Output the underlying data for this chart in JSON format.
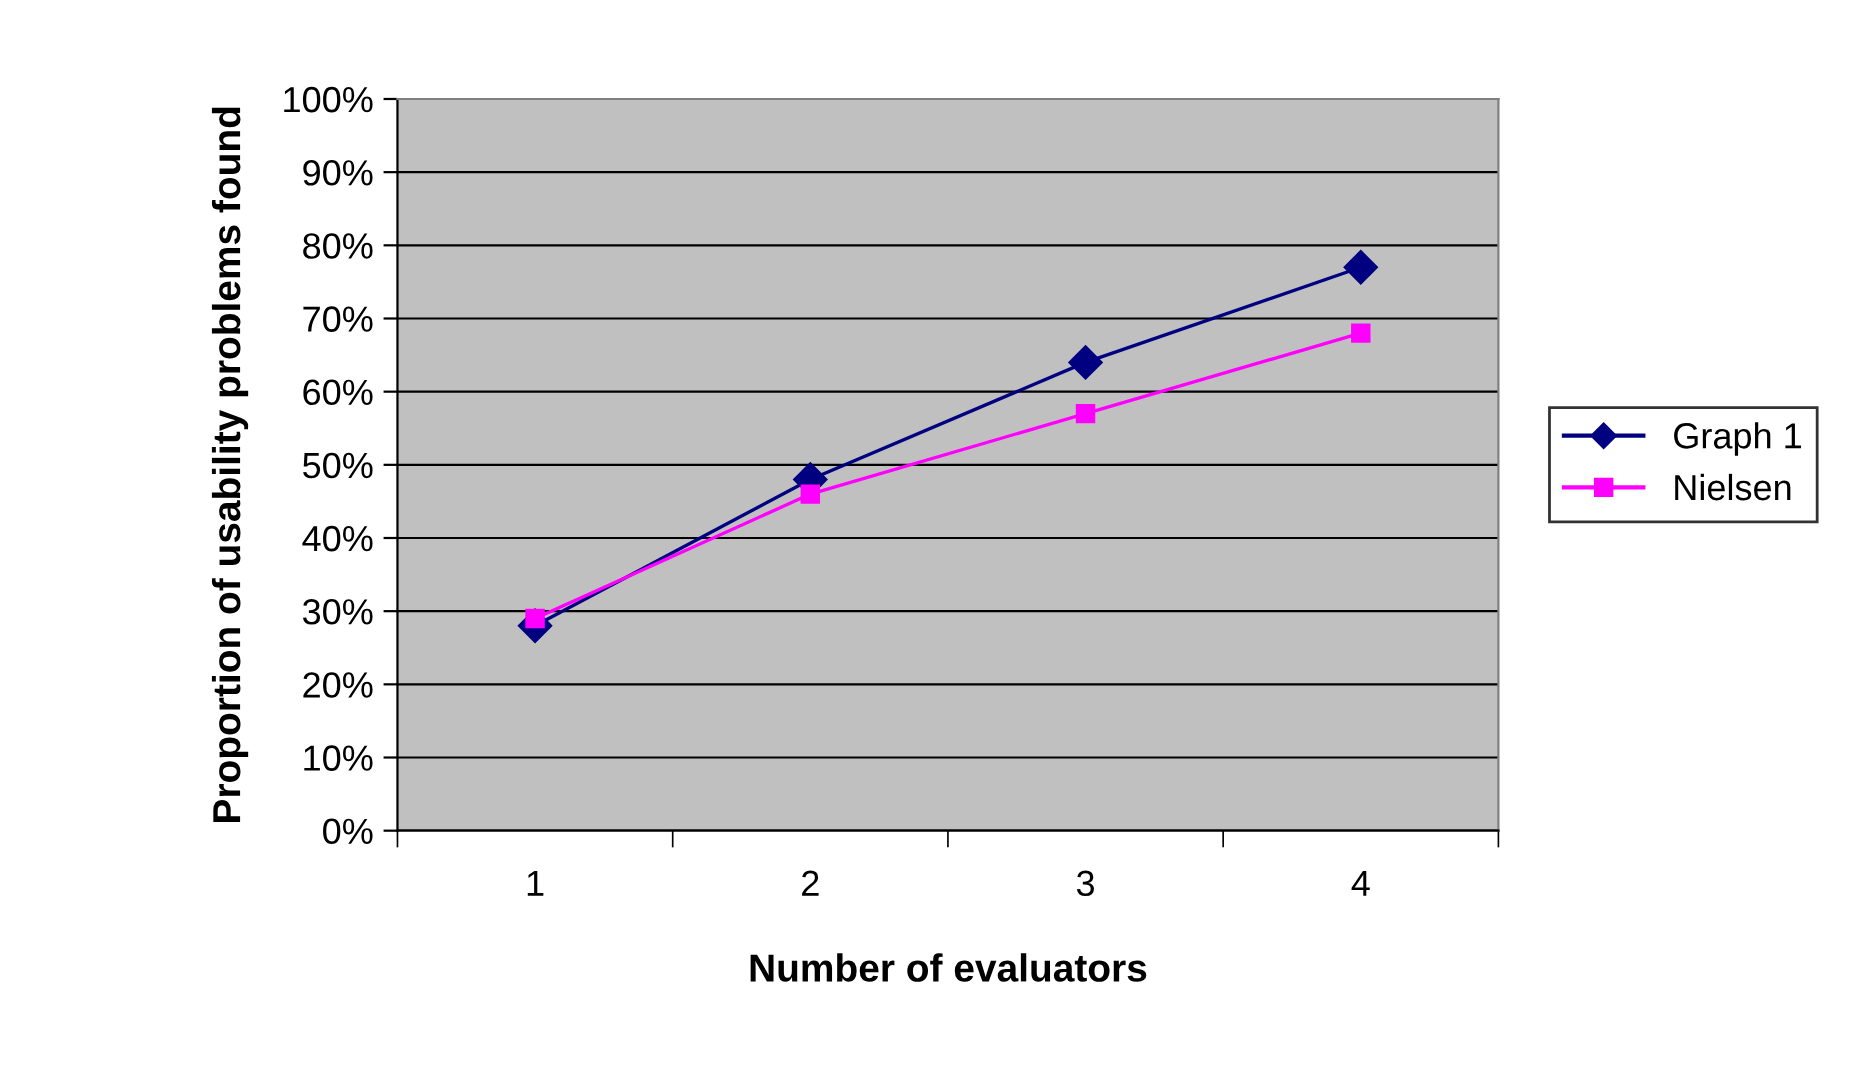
{
  "chart_data": {
    "type": "line",
    "xlabel": "Number of evaluators",
    "ylabel": "Proportion of usability problems found",
    "categories": [
      "1",
      "2",
      "3",
      "4"
    ],
    "series": [
      {
        "name": "Graph 1",
        "color": "#000080",
        "marker": "diamond",
        "values": [
          0.28,
          0.48,
          0.64,
          0.77
        ]
      },
      {
        "name": "Nielsen",
        "color": "#ff00ff",
        "marker": "square",
        "values": [
          0.29,
          0.46,
          0.57,
          0.68
        ]
      }
    ],
    "ylim": [
      0,
      1
    ],
    "yticks": [
      {
        "value": 0,
        "label": "0%"
      },
      {
        "value": 0.1,
        "label": "10%"
      },
      {
        "value": 0.2,
        "label": "20%"
      },
      {
        "value": 0.3,
        "label": "30%"
      },
      {
        "value": 0.4,
        "label": "40%"
      },
      {
        "value": 0.5,
        "label": "50%"
      },
      {
        "value": 0.6,
        "label": "60%"
      },
      {
        "value": 0.7,
        "label": "70%"
      },
      {
        "value": 0.8,
        "label": "80%"
      },
      {
        "value": 0.9,
        "label": "90%"
      },
      {
        "value": 1,
        "label": "100%"
      }
    ],
    "grid": "y",
    "legend": "right"
  }
}
